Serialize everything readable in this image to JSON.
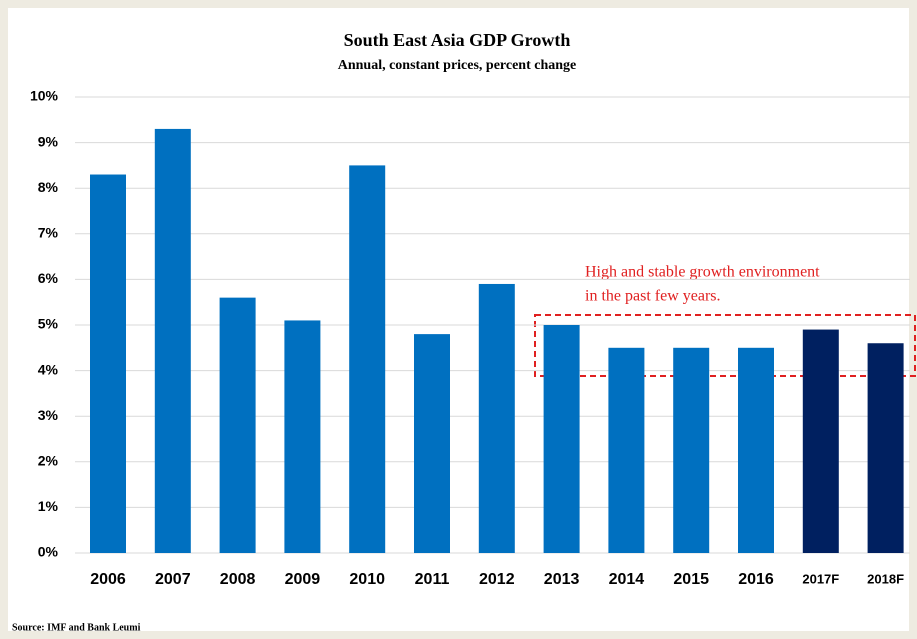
{
  "chart_data": {
    "type": "bar",
    "title": "South East Asia GDP Growth",
    "subtitle": "Annual, constant prices, percent change",
    "categories": [
      "2006",
      "2007",
      "2008",
      "2009",
      "2010",
      "2011",
      "2012",
      "2013",
      "2014",
      "2015",
      "2016",
      "2017F",
      "2018F"
    ],
    "values": [
      8.3,
      9.3,
      5.6,
      5.1,
      8.5,
      4.8,
      5.9,
      5.0,
      4.5,
      4.5,
      4.5,
      4.9,
      4.6
    ],
    "colors": [
      "#0070c0",
      "#0070c0",
      "#0070c0",
      "#0070c0",
      "#0070c0",
      "#0070c0",
      "#0070c0",
      "#0070c0",
      "#0070c0",
      "#0070c0",
      "#0070c0",
      "#002060",
      "#002060"
    ],
    "ylim": [
      0,
      10
    ],
    "yticks": [
      {
        "value": 0,
        "label": "0%"
      },
      {
        "value": 1,
        "label": "1%"
      },
      {
        "value": 2,
        "label": "2%"
      },
      {
        "value": 3,
        "label": "3%"
      },
      {
        "value": 4,
        "label": "4%"
      },
      {
        "value": 5,
        "label": "5%"
      },
      {
        "value": 6,
        "label": "6%"
      },
      {
        "value": 7,
        "label": "7%"
      },
      {
        "value": 8,
        "label": "8%"
      },
      {
        "value": 9,
        "label": "9%"
      },
      {
        "value": 10,
        "label": "10%"
      }
    ],
    "grid": true,
    "annotations": [
      "High and stable growth environment",
      "in the past few years."
    ],
    "source": "Source: IMF and Bank Leumi"
  }
}
